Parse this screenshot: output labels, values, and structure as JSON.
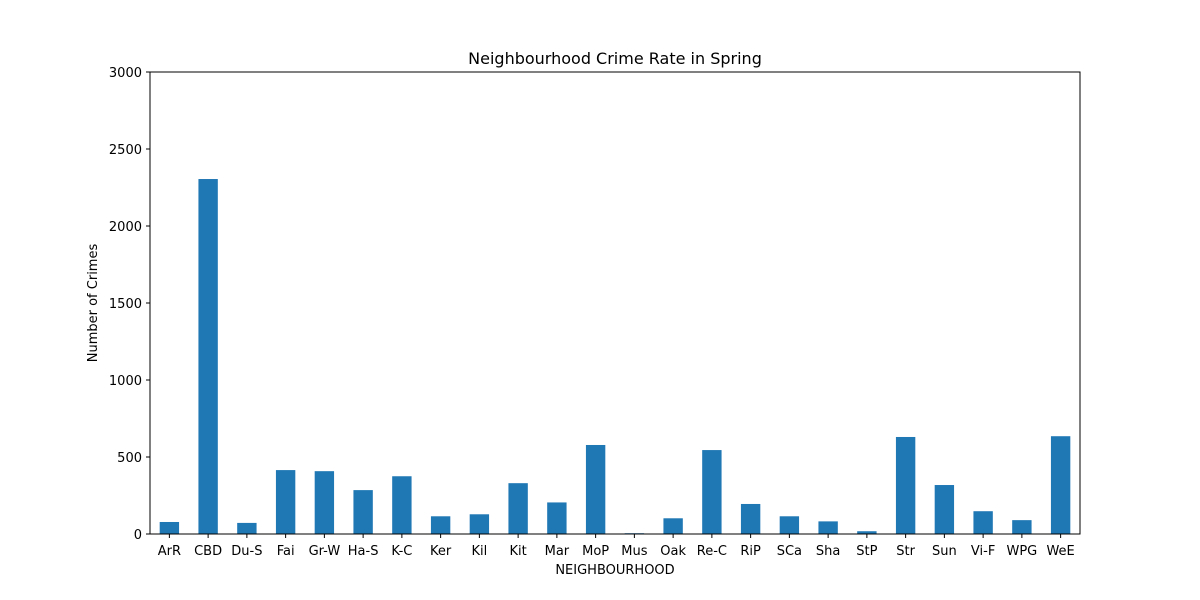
{
  "chart_data": {
    "type": "bar",
    "title": "Neighbourhood Crime Rate in Spring",
    "xlabel": "NEIGHBOURHOOD",
    "ylabel": "Number of Crimes",
    "ylim": [
      0,
      3000
    ],
    "yticks": [
      0,
      500,
      1000,
      1500,
      2000,
      2500,
      3000
    ],
    "grid": false,
    "bar_color": "#1f77b4",
    "categories": [
      "ArR",
      "CBD",
      "Du-S",
      "Fai",
      "Gr-W",
      "Ha-S",
      "K-C",
      "Ker",
      "Kil",
      "Kit",
      "Mar",
      "MoP",
      "Mus",
      "Oak",
      "Re-C",
      "RiP",
      "SCa",
      "Sha",
      "StP",
      "Str",
      "Sun",
      "Vi-F",
      "WPG",
      "WeE"
    ],
    "values": [
      78,
      2305,
      72,
      415,
      408,
      285,
      375,
      115,
      128,
      330,
      205,
      578,
      5,
      102,
      545,
      195,
      115,
      82,
      18,
      630,
      318,
      148,
      90,
      635
    ]
  }
}
